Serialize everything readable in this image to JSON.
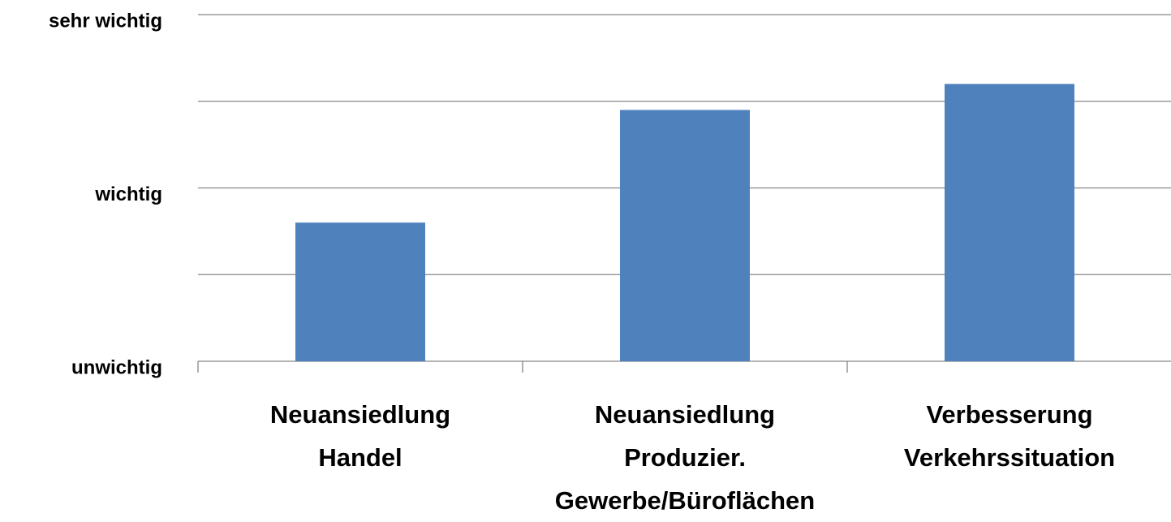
{
  "chart_data": {
    "type": "bar",
    "categories": [
      "Neuansiedlung\nHandel",
      "Neuansiedlung\nProduzier.\nGewerbe/Büroflächen",
      "Verbesserung\nVerkehrssituation"
    ],
    "values": [
      1.8,
      2.45,
      2.6
    ],
    "color": "#4f81bd",
    "ylim": [
      1,
      3
    ],
    "yticks": [
      {
        "value": 1,
        "label": "unwichtig"
      },
      {
        "value": 2,
        "label": "wichtig"
      },
      {
        "value": 3,
        "label": "sehr wichtig"
      }
    ],
    "minor_yticks": [
      1.5,
      2.5
    ],
    "grid": true
  }
}
